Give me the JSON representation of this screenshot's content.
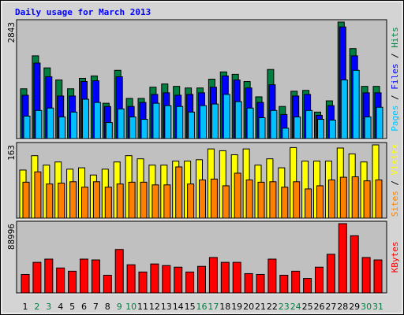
{
  "chart_data": [
    {
      "type": "bar",
      "title": "Daily usage for March 2013",
      "legend_separator": " / ",
      "ylim": [
        0,
        2843
      ],
      "yticks": [
        2843
      ],
      "series": [
        {
          "name": "Hits",
          "color": "#008040",
          "values": [
            1215,
            2019,
            1725,
            1431,
            1215,
            1470,
            1529,
            862,
            1666,
            980,
            980,
            1254,
            1333,
            1274,
            1235,
            1235,
            1450,
            1627,
            1568,
            1392,
            1019,
            1686,
            784,
            1156,
            1176,
            647,
            921,
            2843,
            2195,
            1274,
            1274
          ]
        },
        {
          "name": "Files",
          "color": "#0000ff",
          "values": [
            1058,
            1843,
            1509,
            1039,
            1039,
            1392,
            1411,
            784,
            1509,
            784,
            882,
            1078,
            1117,
            1058,
            1078,
            1117,
            1254,
            1529,
            1431,
            1235,
            882,
            1313,
            588,
            1039,
            1078,
            568,
            804,
            2724,
            2019,
            1117,
            1117
          ]
        },
        {
          "name": "Pages",
          "color": "#00c0ff",
          "values": [
            549,
            686,
            745,
            529,
            647,
            960,
            882,
            392,
            725,
            529,
            470,
            862,
            804,
            784,
            647,
            804,
            843,
            1078,
            902,
            745,
            510,
            686,
            255,
            529,
            686,
            470,
            451,
            1431,
            1666,
            529,
            764
          ]
        }
      ]
    },
    {
      "type": "bar",
      "ylim": [
        0,
        163
      ],
      "yticks": [
        163
      ],
      "series": [
        {
          "name": "Visits",
          "color": "#ffff00",
          "values": [
            107,
            139,
            118,
            125,
            109,
            112,
            96,
            109,
            125,
            139,
            132,
            118,
            118,
            127,
            127,
            130,
            154,
            150,
            141,
            154,
            118,
            132,
            112,
            157,
            127,
            127,
            127,
            156,
            143,
            125,
            163
          ]
        },
        {
          "name": "Sites",
          "color": "#ff8000",
          "values": [
            80,
            103,
            76,
            78,
            81,
            69,
            81,
            69,
            76,
            80,
            80,
            74,
            74,
            114,
            76,
            85,
            87,
            72,
            100,
            85,
            80,
            81,
            69,
            81,
            65,
            72,
            85,
            91,
            92,
            83,
            85
          ]
        }
      ]
    },
    {
      "type": "bar",
      "ylim": [
        0,
        88996
      ],
      "yticks": [
        88996
      ],
      "categories": [
        "1",
        "2",
        "3",
        "4",
        "5",
        "6",
        "7",
        "8",
        "9",
        "10",
        "11",
        "12",
        "13",
        "14",
        "15",
        "16",
        "17",
        "18",
        "19",
        "20",
        "21",
        "22",
        "23",
        "24",
        "25",
        "26",
        "27",
        "28",
        "29",
        "30",
        "31"
      ],
      "category_colors": [
        "#000000",
        "#008040",
        "#008040",
        "#000000",
        "#000000",
        "#000000",
        "#000000",
        "#000000",
        "#008040",
        "#008040",
        "#000000",
        "#000000",
        "#000000",
        "#000000",
        "#000000",
        "#008040",
        "#008040",
        "#000000",
        "#000000",
        "#000000",
        "#000000",
        "#000000",
        "#008040",
        "#008040",
        "#000000",
        "#000000",
        "#000000",
        "#000000",
        "#000000",
        "#008040",
        "#008040"
      ],
      "series": [
        {
          "name": "KBytes",
          "color": "#ff0000",
          "values": [
            23800,
            39322,
            43462,
            32079,
            27940,
            43462,
            42427,
            22766,
            55879,
            36218,
            26905,
            37253,
            35183,
            33114,
            26905,
            34148,
            45531,
            39322,
            39322,
            24835,
            23800,
            43462,
            22766,
            27940,
            18626,
            33114,
            49670,
            88996,
            73471,
            45531,
            42427
          ]
        }
      ]
    }
  ]
}
